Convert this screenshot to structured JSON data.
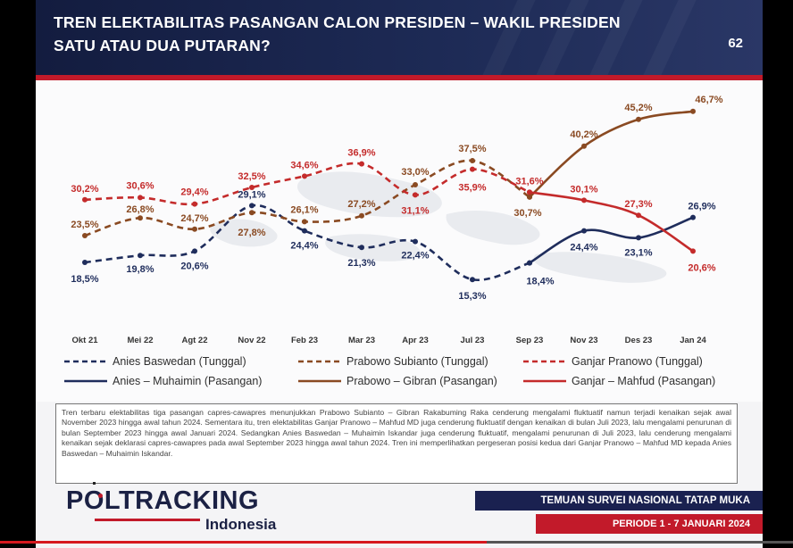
{
  "header": {
    "title_line1": "TREN ELEKTABILITAS PASANGAN CALON PRESIDEN – WAKIL PRESIDEN",
    "title_line2": "SATU ATAU DUA PUTARAN?",
    "page_number": "62"
  },
  "colors": {
    "anies": "#1f2d5c",
    "prabowo": "#8a4a22",
    "ganjar": "#c42b2b",
    "header_navy": "#1a2150",
    "accent_red": "#c21a2a"
  },
  "chart_data": {
    "type": "line",
    "categories": [
      "Okt 21",
      "Mei 22",
      "Agt 22",
      "Nov 22",
      "Feb 23",
      "Mar 23",
      "Apr 23",
      "Jul 23",
      "Sep 23",
      "Nov 23",
      "Des 23",
      "Jan 24"
    ],
    "ylim": [
      10,
      50
    ],
    "grid": false,
    "legend_position": "bottom",
    "series": [
      {
        "name": "Anies Baswedan (Tunggal)",
        "candidate": "anies",
        "style": "dashed",
        "values": [
          18.5,
          19.8,
          20.6,
          29.1,
          24.4,
          21.3,
          22.4,
          15.3,
          18.4,
          null,
          null,
          null
        ],
        "labels": [
          "18,5%",
          "19,8%",
          "20,6%",
          "29,1%",
          "24,4%",
          "21,3%",
          "22,4%",
          "15,3%",
          "18,4%",
          "",
          "",
          ""
        ]
      },
      {
        "name": "Prabowo Subianto (Tunggal)",
        "candidate": "prabowo",
        "style": "dashed",
        "values": [
          23.5,
          26.8,
          24.7,
          27.8,
          26.1,
          27.2,
          33.0,
          37.5,
          30.7,
          null,
          null,
          null
        ],
        "labels": [
          "23,5%",
          "26,8%",
          "24,7%",
          "27,8%",
          "26,1%",
          "27,2%",
          "33,0%",
          "37,5%",
          "30,7%",
          "",
          "",
          ""
        ]
      },
      {
        "name": "Ganjar Pranowo (Tunggal)",
        "candidate": "ganjar",
        "style": "dashed",
        "values": [
          30.2,
          30.6,
          29.4,
          32.5,
          34.6,
          36.9,
          31.1,
          35.9,
          31.6,
          null,
          null,
          null
        ],
        "labels": [
          "30,2%",
          "30,6%",
          "29,4%",
          "32,5%",
          "34,6%",
          "36,9%",
          "31,1%",
          "35,9%",
          "31,6%",
          "",
          "",
          ""
        ]
      },
      {
        "name": "Anies – Muhaimin (Pasangan)",
        "candidate": "anies",
        "style": "solid",
        "values": [
          null,
          null,
          null,
          null,
          null,
          null,
          null,
          null,
          18.4,
          24.4,
          23.1,
          26.9
        ],
        "labels": [
          "",
          "",
          "",
          "",
          "",
          "",
          "",
          "",
          "",
          "24,4%",
          "23,1%",
          "26,9%"
        ]
      },
      {
        "name": "Prabowo – Gibran (Pasangan)",
        "candidate": "prabowo",
        "style": "solid",
        "values": [
          null,
          null,
          null,
          null,
          null,
          null,
          null,
          null,
          30.7,
          40.2,
          45.2,
          46.7
        ],
        "labels": [
          "",
          "",
          "",
          "",
          "",
          "",
          "",
          "",
          "",
          "40,2%",
          "45,2%",
          "46,7%"
        ]
      },
      {
        "name": "Ganjar – Mahfud (Pasangan)",
        "candidate": "ganjar",
        "style": "solid",
        "values": [
          null,
          null,
          null,
          null,
          null,
          null,
          null,
          null,
          31.6,
          30.1,
          27.3,
          20.6
        ],
        "labels": [
          "",
          "",
          "",
          "",
          "",
          "",
          "",
          "",
          "",
          "30,1%",
          "27,3%",
          "20,6%"
        ]
      }
    ]
  },
  "description": "Tren terbaru elektabilitas tiga pasangan capres-cawapres menunjukkan Prabowo Subianto – Gibran Rakabuming Raka cenderung mengalami fluktuatif namun terjadi kenaikan sejak awal November 2023 hingga awal tahun 2024. Sementara itu, tren elektabilitas Ganjar Pranowo – Mahfud MD juga cenderung fluktuatif dengan kenaikan di bulan Juli 2023, lalu mengalami penurunan di bulan September 2023 hingga awal Januari 2024. Sedangkan Anies Baswedan – Muhaimin Iskandar juga cenderung fluktuatif, mengalami penurunan di Juli 2023, lalu cenderung mengalami kenaikan sejak deklarasi capres-cawapres pada awal September 2023 hingga awal tahun 2024. Tren ini memperlihatkan pergeseran posisi kedua dari Ganjar Pranowo – Mahfud MD kepada Anies Baswedan – Muhaimin Iskandar.",
  "logo": {
    "main": "POLTRACKING",
    "sub": "Indonesia"
  },
  "footer": {
    "survey": "TEMUAN SURVEI NASIONAL TATAP MUKA",
    "period": "PERIODE 1 - 7 JANUARI 2024"
  }
}
